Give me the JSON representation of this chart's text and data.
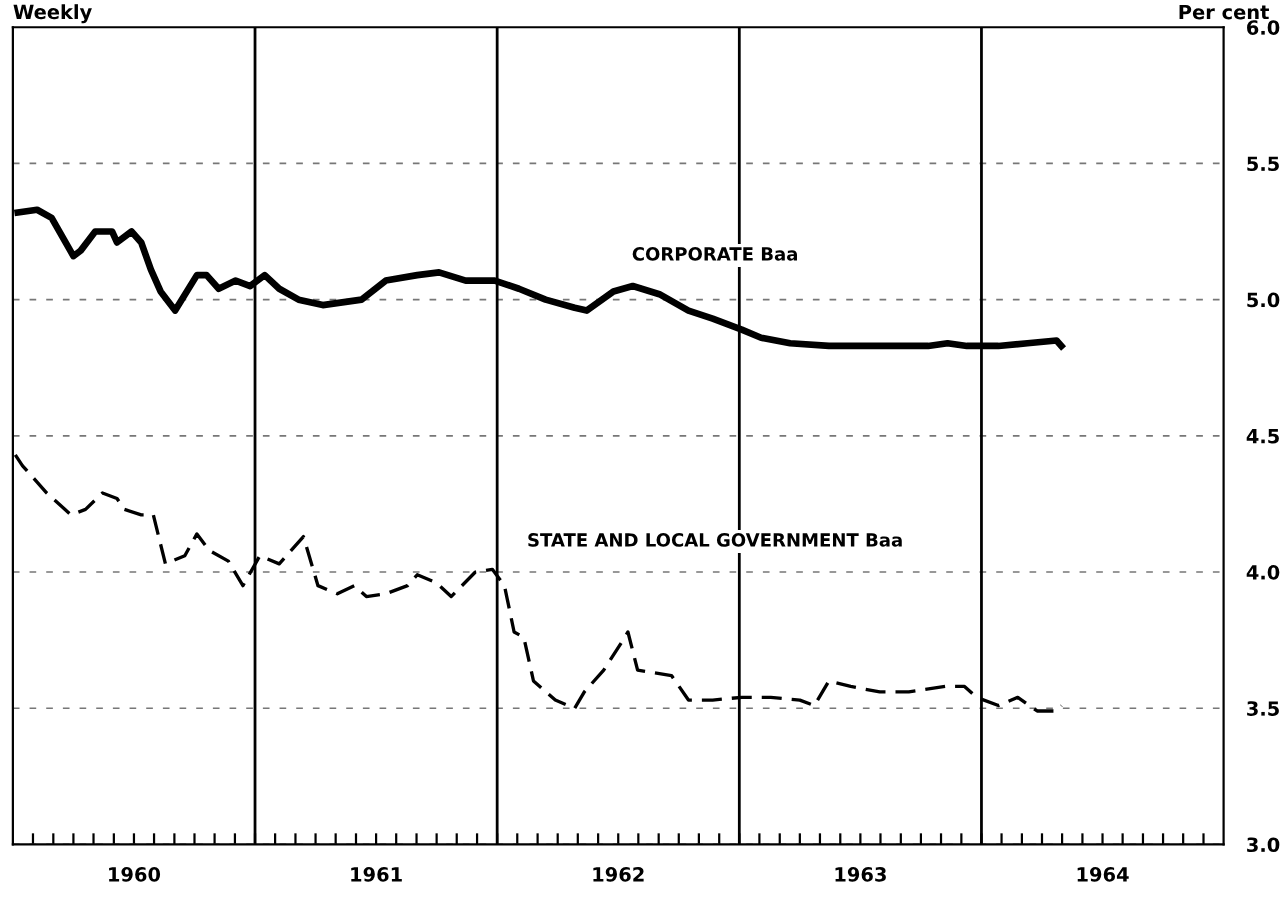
{
  "chart_data": {
    "type": "line",
    "ylabel": "Per cent",
    "annotations": [
      "Weekly"
    ],
    "xlim": [
      1960,
      1965
    ],
    "ylim": [
      3.0,
      6.0
    ],
    "yticks": [
      {
        "value": 3.0,
        "label": "3.0"
      },
      {
        "value": 3.5,
        "label": "3.5"
      },
      {
        "value": 4.0,
        "label": "4.0"
      },
      {
        "value": 4.5,
        "label": "4.5"
      },
      {
        "value": 5.0,
        "label": "5.0"
      },
      {
        "value": 5.5,
        "label": "5.5"
      },
      {
        "value": 6.0,
        "label": "6.0"
      }
    ],
    "xticks": [
      {
        "value": 1960.083,
        "label": null
      },
      {
        "value": 1960.167,
        "label": null
      },
      {
        "value": 1960.25,
        "label": null
      },
      {
        "value": 1960.333,
        "label": null
      },
      {
        "value": 1960.417,
        "label": null
      },
      {
        "value": 1960.5,
        "label": "1960"
      },
      {
        "value": 1960.583,
        "label": null
      },
      {
        "value": 1960.667,
        "label": null
      },
      {
        "value": 1960.75,
        "label": null
      },
      {
        "value": 1960.833,
        "label": null
      },
      {
        "value": 1960.917,
        "label": null
      },
      {
        "value": 1961,
        "label": null
      },
      {
        "value": 1961.083,
        "label": null
      },
      {
        "value": 1961.167,
        "label": null
      },
      {
        "value": 1961.25,
        "label": null
      },
      {
        "value": 1961.333,
        "label": null
      },
      {
        "value": 1961.417,
        "label": null
      },
      {
        "value": 1961.5,
        "label": "1961"
      },
      {
        "value": 1961.583,
        "label": null
      },
      {
        "value": 1961.667,
        "label": null
      },
      {
        "value": 1961.75,
        "label": null
      },
      {
        "value": 1961.833,
        "label": null
      },
      {
        "value": 1961.917,
        "label": null
      },
      {
        "value": 1962,
        "label": null
      },
      {
        "value": 1962.083,
        "label": null
      },
      {
        "value": 1962.167,
        "label": null
      },
      {
        "value": 1962.25,
        "label": null
      },
      {
        "value": 1962.333,
        "label": null
      },
      {
        "value": 1962.417,
        "label": null
      },
      {
        "value": 1962.5,
        "label": "1962"
      },
      {
        "value": 1962.583,
        "label": null
      },
      {
        "value": 1962.667,
        "label": null
      },
      {
        "value": 1962.75,
        "label": null
      },
      {
        "value": 1962.833,
        "label": null
      },
      {
        "value": 1962.917,
        "label": null
      },
      {
        "value": 1963,
        "label": null
      },
      {
        "value": 1963.083,
        "label": null
      },
      {
        "value": 1963.167,
        "label": null
      },
      {
        "value": 1963.25,
        "label": null
      },
      {
        "value": 1963.333,
        "label": null
      },
      {
        "value": 1963.417,
        "label": null
      },
      {
        "value": 1963.5,
        "label": "1963"
      },
      {
        "value": 1963.583,
        "label": null
      },
      {
        "value": 1963.667,
        "label": null
      },
      {
        "value": 1963.75,
        "label": null
      },
      {
        "value": 1963.833,
        "label": null
      },
      {
        "value": 1963.917,
        "label": null
      },
      {
        "value": 1964,
        "label": null
      },
      {
        "value": 1964.083,
        "label": null
      },
      {
        "value": 1964.167,
        "label": null
      },
      {
        "value": 1964.25,
        "label": null
      },
      {
        "value": 1964.333,
        "label": null
      },
      {
        "value": 1964.417,
        "label": null
      },
      {
        "value": 1964.5,
        "label": "1964"
      },
      {
        "value": 1964.583,
        "label": null
      },
      {
        "value": 1964.667,
        "label": null
      },
      {
        "value": 1964.75,
        "label": null
      },
      {
        "value": 1964.833,
        "label": null
      },
      {
        "value": 1964.917,
        "label": null
      }
    ],
    "grid": "y",
    "legend": false,
    "marker": "none",
    "ref_lines": [
      {
        "axis": "x",
        "value": 1961,
        "label": null,
        "color": "#000000",
        "line_style": "solid"
      },
      {
        "axis": "x",
        "value": 1962,
        "label": null,
        "color": "#000000",
        "line_style": "solid"
      },
      {
        "axis": "x",
        "value": 1963,
        "label": null,
        "color": "#000000",
        "line_style": "solid"
      },
      {
        "axis": "x",
        "value": 1964,
        "label": null,
        "color": "#000000",
        "line_style": "solid"
      }
    ],
    "series": [
      {
        "name": "CORPORATE Baa",
        "color": "#000000",
        "line_style": "solid",
        "x": [
          1960.02,
          1960.1,
          1960.16,
          1960.25,
          1960.28,
          1960.34,
          1960.41,
          1960.43,
          1960.49,
          1960.53,
          1960.57,
          1960.61,
          1960.67,
          1960.76,
          1960.8,
          1960.85,
          1960.92,
          1960.98,
          1961.04,
          1961.1,
          1961.18,
          1961.28,
          1961.36,
          1961.44,
          1961.54,
          1961.67,
          1961.76,
          1961.87,
          1961.99,
          1962.09,
          1962.2,
          1962.32,
          1962.37,
          1962.48,
          1962.56,
          1962.67,
          1962.79,
          1962.89,
          1963.01,
          1963.09,
          1963.21,
          1963.37,
          1963.54,
          1963.78,
          1963.86,
          1963.94,
          1964.07,
          1964.19,
          1964.31,
          1964.33
        ],
        "values": [
          5.32,
          5.33,
          5.3,
          5.16,
          5.18,
          5.25,
          5.25,
          5.21,
          5.25,
          5.21,
          5.11,
          5.03,
          4.96,
          5.09,
          5.09,
          5.04,
          5.07,
          5.05,
          5.09,
          5.04,
          5.0,
          4.98,
          4.99,
          5.0,
          5.07,
          5.09,
          5.1,
          5.07,
          5.07,
          5.04,
          5.0,
          4.97,
          4.96,
          5.03,
          5.05,
          5.02,
          4.96,
          4.93,
          4.89,
          4.86,
          4.84,
          4.83,
          4.83,
          4.83,
          4.84,
          4.83,
          4.83,
          4.84,
          4.85,
          4.83
        ]
      },
      {
        "name": "STATE AND LOCAL GOVERNMENT Baa",
        "color": "#000000",
        "line_style": "dashed",
        "x": [
          1960.01,
          1960.04,
          1960.14,
          1960.24,
          1960.3,
          1960.37,
          1960.43,
          1960.46,
          1960.53,
          1960.58,
          1960.63,
          1960.71,
          1960.76,
          1960.81,
          1960.89,
          1960.95,
          1961.02,
          1961.1,
          1961.2,
          1961.26,
          1961.34,
          1961.41,
          1961.46,
          1961.54,
          1961.63,
          1961.67,
          1961.75,
          1961.81,
          1961.91,
          1961.98,
          1962.03,
          1962.07,
          1962.11,
          1962.15,
          1962.24,
          1962.32,
          1962.36,
          1962.44,
          1962.52,
          1962.54,
          1962.58,
          1962.72,
          1962.79,
          1962.89,
          1963.01,
          1963.13,
          1963.25,
          1963.31,
          1963.37,
          1963.46,
          1963.58,
          1963.7,
          1963.85,
          1963.93,
          1963.98,
          1964.07,
          1964.15,
          1964.23,
          1964.31,
          1964.33
        ],
        "values": [
          4.43,
          4.39,
          4.29,
          4.21,
          4.23,
          4.29,
          4.27,
          4.23,
          4.21,
          4.21,
          4.03,
          4.06,
          4.14,
          4.08,
          4.04,
          3.95,
          4.06,
          4.03,
          4.13,
          3.95,
          3.92,
          3.95,
          3.91,
          3.92,
          3.95,
          3.99,
          3.96,
          3.91,
          4.0,
          4.01,
          3.95,
          3.78,
          3.76,
          3.6,
          3.53,
          3.5,
          3.56,
          3.64,
          3.75,
          3.78,
          3.64,
          3.62,
          3.53,
          3.53,
          3.54,
          3.54,
          3.53,
          3.51,
          3.6,
          3.58,
          3.56,
          3.56,
          3.58,
          3.58,
          3.54,
          3.51,
          3.54,
          3.49,
          3.49,
          3.51
        ]
      }
    ]
  }
}
